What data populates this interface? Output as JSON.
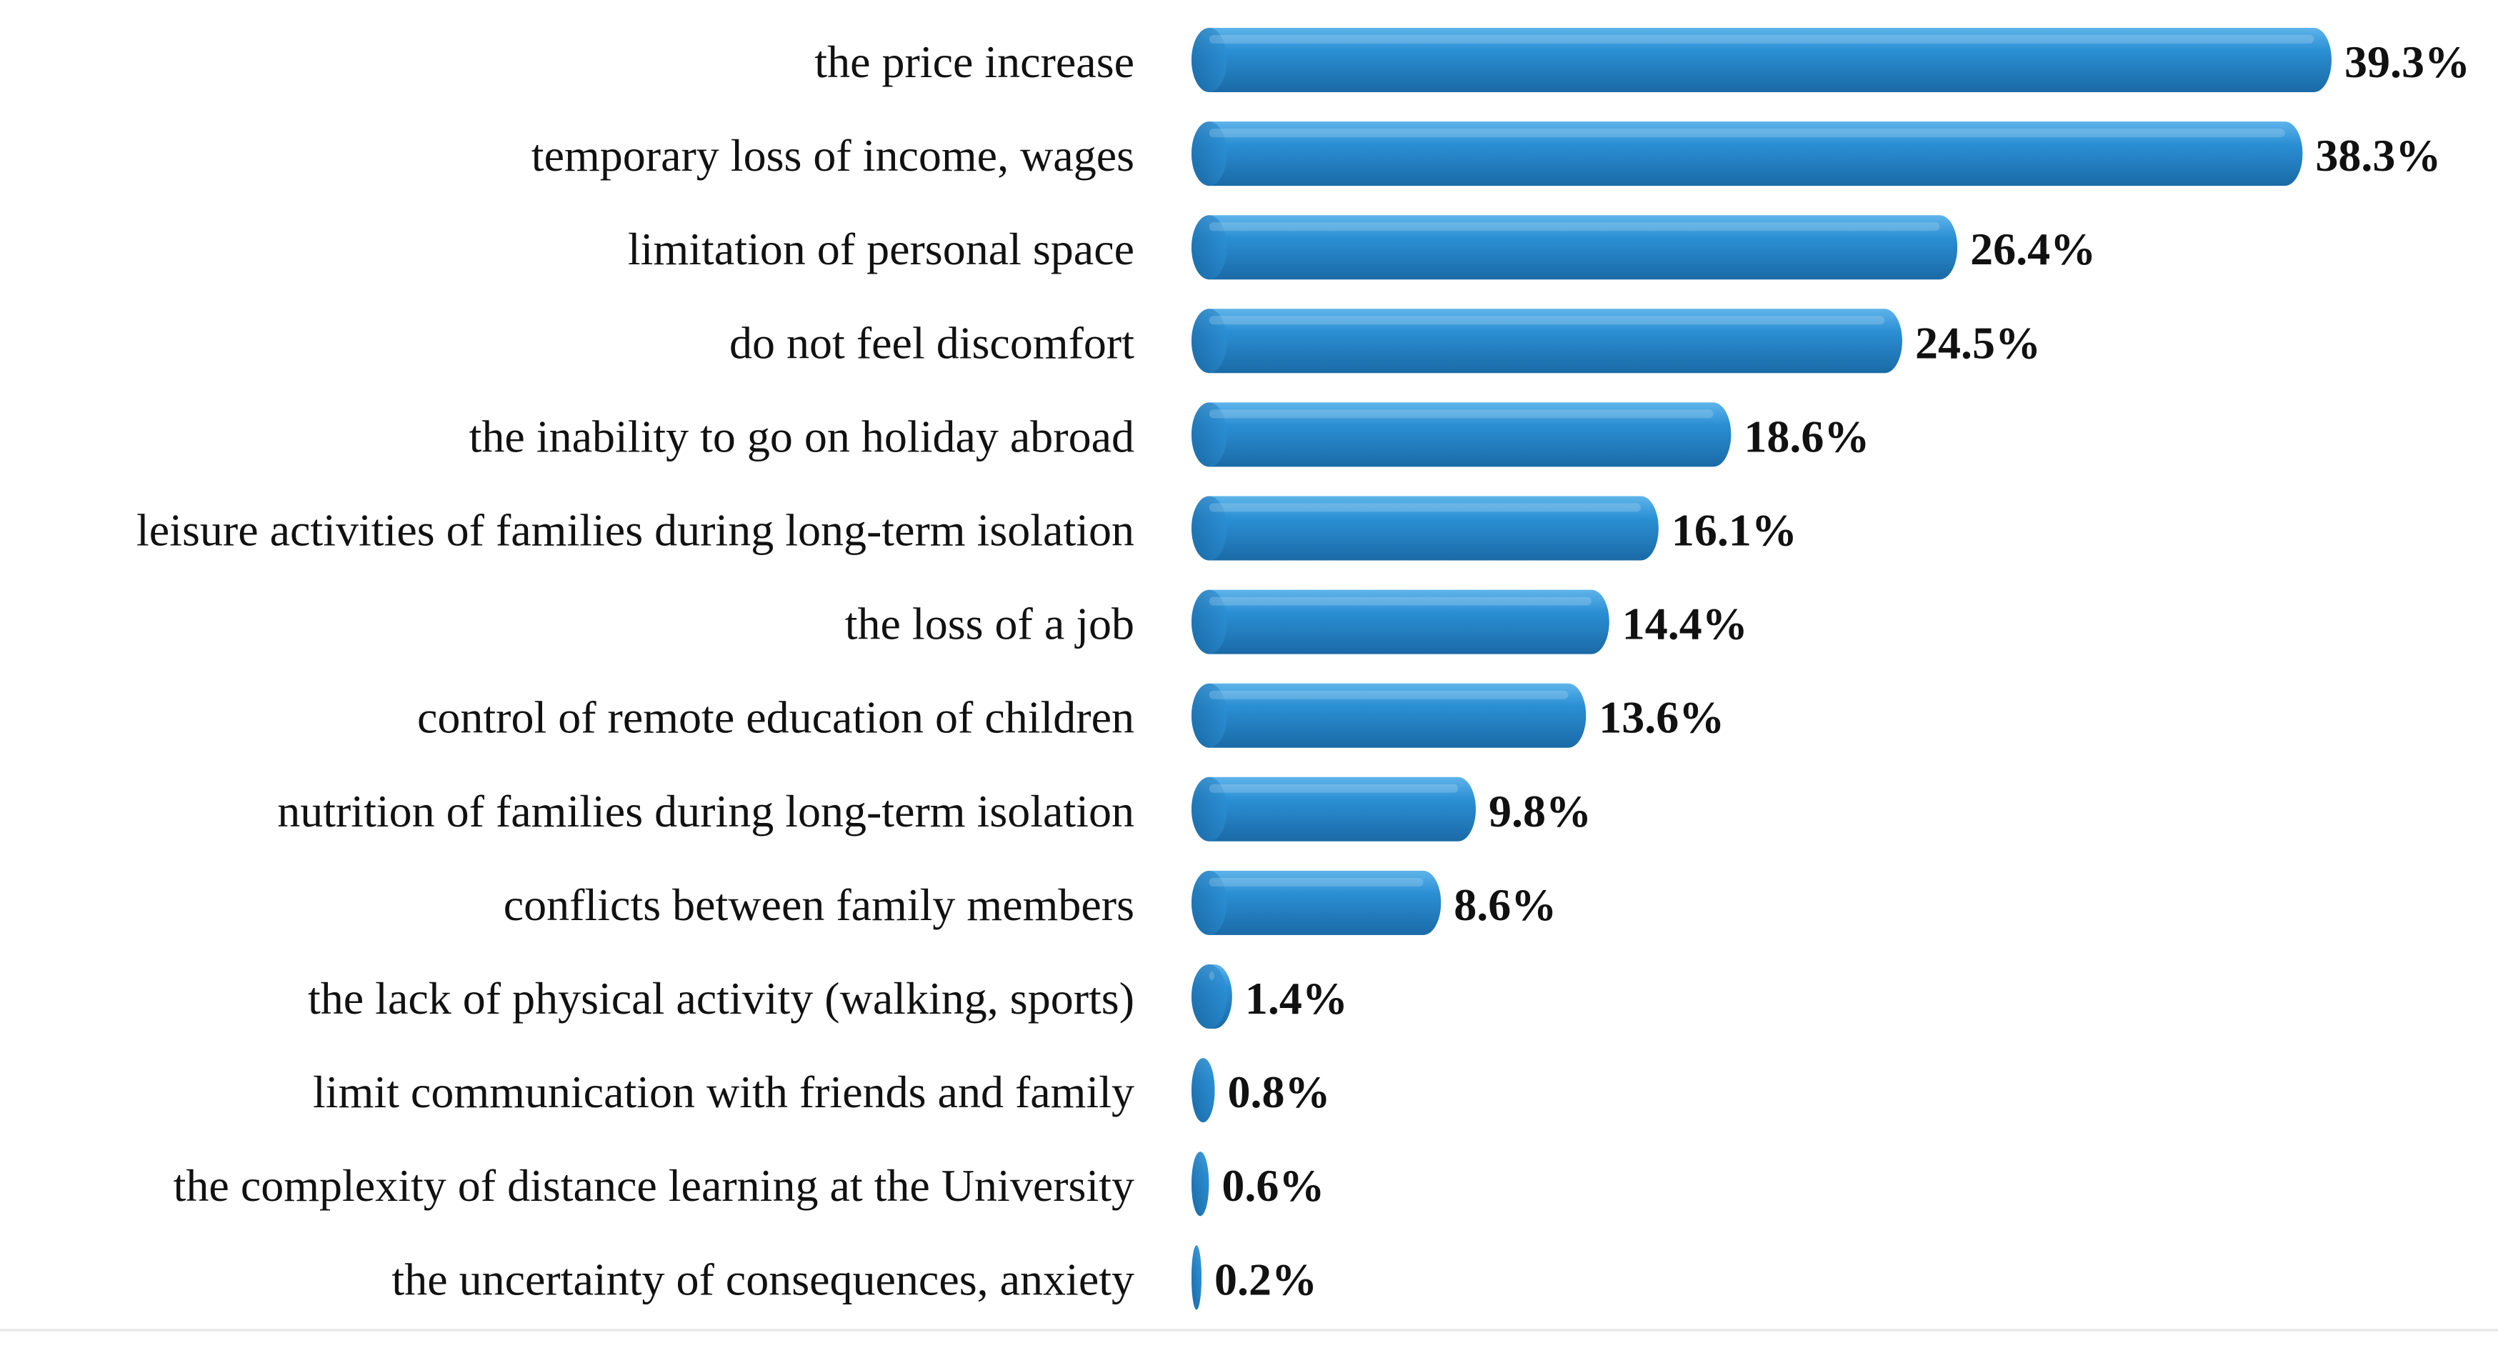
{
  "chart_data": {
    "type": "bar",
    "orientation": "horizontal",
    "categories": [
      "the price increase",
      "temporary loss of income, wages",
      "limitation of personal space",
      "do not feel discomfort",
      "the inability to go on holiday abroad",
      "leisure activities of families during long-term isolation",
      "the loss of a job",
      "control of remote education of children",
      "nutrition of families during long-term isolation",
      "conflicts between family members",
      "the lack of physical activity (walking, sports)",
      "limit communication with friends and family",
      "the complexity of distance learning at the University",
      "the uncertainty of consequences, anxiety"
    ],
    "values": [
      39.3,
      38.3,
      26.4,
      24.5,
      18.6,
      16.1,
      14.4,
      13.6,
      9.8,
      8.6,
      1.4,
      0.8,
      0.6,
      0.2
    ],
    "value_labels": [
      "39.3%",
      "38.3%",
      "26.4%",
      "24.5%",
      "18.6%",
      "16.1%",
      "14.4%",
      "13.6%",
      "9.8%",
      "8.6%",
      "1.4%",
      "0.8%",
      "0.6%",
      "0.2%"
    ],
    "unit": "%",
    "title": "",
    "xlabel": "",
    "ylabel": "",
    "xlim": [
      0,
      40
    ],
    "grid": false,
    "legend": "none",
    "colors": {
      "bar": "#2b8fd4",
      "bar_light": "#5fb4ea",
      "bar_dark": "#1a6aa6",
      "text": "#111111"
    }
  }
}
